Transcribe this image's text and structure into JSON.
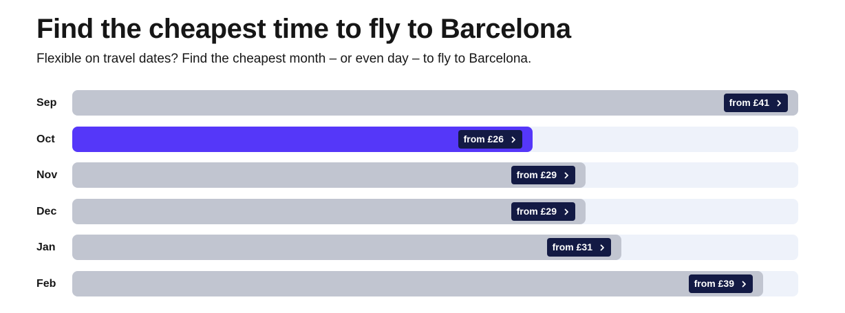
{
  "header": {
    "title": "Find the cheapest time to fly to Barcelona",
    "subtitle": "Flexible on travel dates? Find the cheapest month – or even day – to fly to Barcelona."
  },
  "chart_data": {
    "type": "bar",
    "orientation": "horizontal",
    "currency": "£",
    "categories": [
      "Sep",
      "Oct",
      "Nov",
      "Dec",
      "Jan",
      "Feb"
    ],
    "values": [
      41,
      26,
      29,
      29,
      31,
      39
    ],
    "highlighted": "Oct",
    "xlim": [
      0,
      41
    ]
  },
  "months": [
    {
      "label": "Sep",
      "price_label": "from £41",
      "price": 41,
      "highlight": false
    },
    {
      "label": "Oct",
      "price_label": "from £26",
      "price": 26,
      "highlight": true
    },
    {
      "label": "Nov",
      "price_label": "from £29",
      "price": 29,
      "highlight": false
    },
    {
      "label": "Dec",
      "price_label": "from £29",
      "price": 29,
      "highlight": false
    },
    {
      "label": "Jan",
      "price_label": "from £31",
      "price": 31,
      "highlight": false
    },
    {
      "label": "Feb",
      "price_label": "from £39",
      "price": 39,
      "highlight": false
    }
  ],
  "colors": {
    "highlight_bar": "#5537f9",
    "bar": "#c1c5d0",
    "track": "#eef2fa",
    "price_badge": "#131a44",
    "text": "#161616"
  },
  "icons": {
    "price_chevron": "chevron-right-icon"
  }
}
